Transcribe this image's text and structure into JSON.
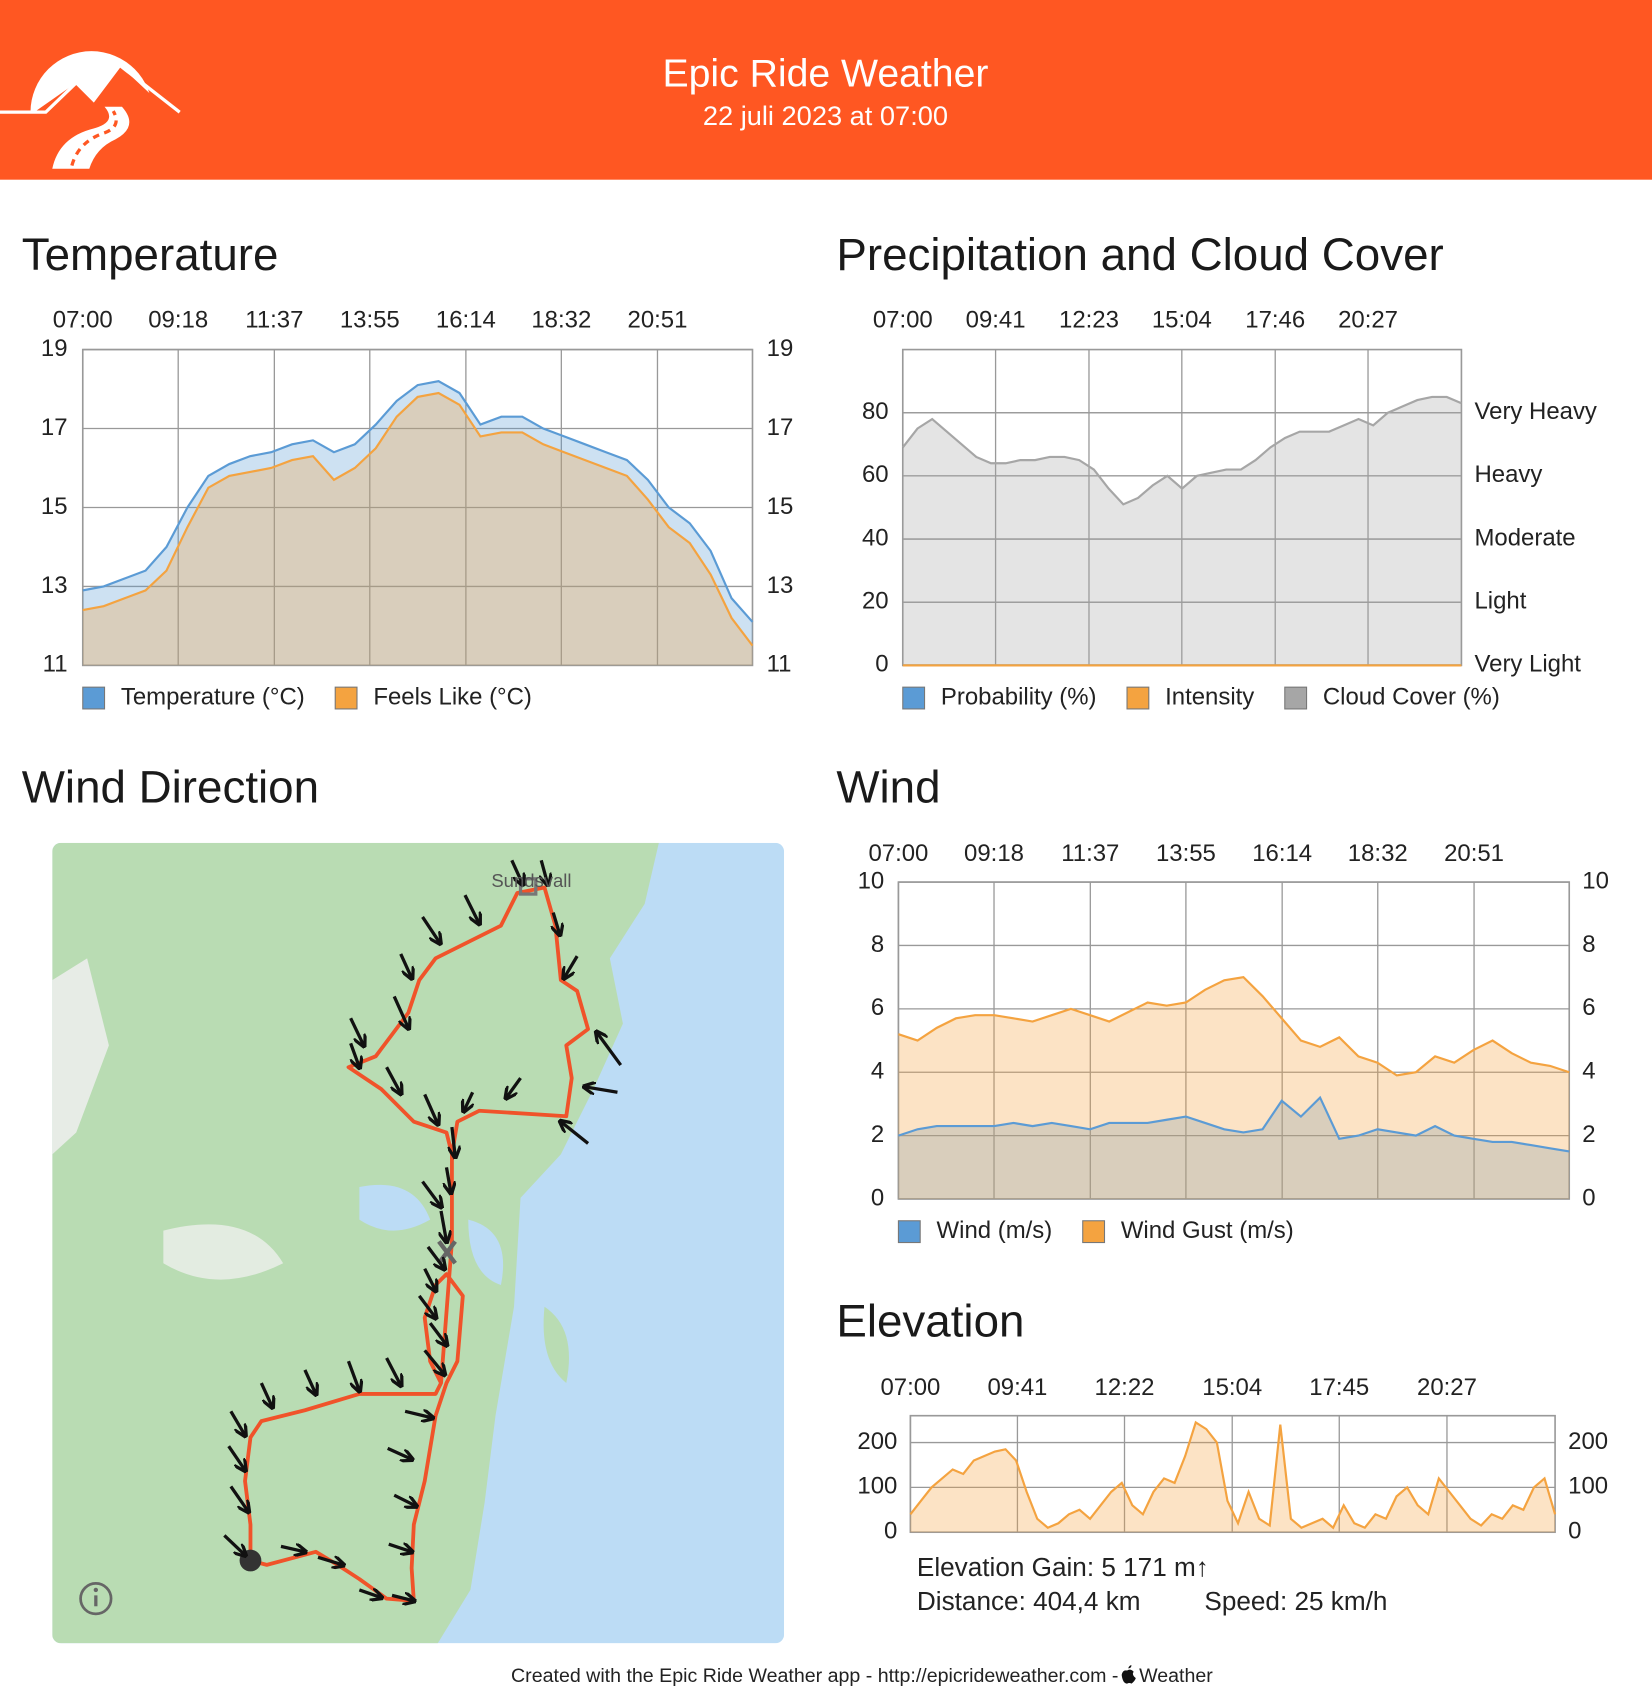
{
  "header": {
    "title": "Epic Ride Weather",
    "subtitle": "22 juli 2023 at 07:00"
  },
  "chart_data": [
    {
      "type": "area",
      "title": "Temperature",
      "xlim": [
        7,
        23.14
      ],
      "xticks": [
        {
          "value": 7,
          "label": "07:00"
        },
        {
          "value": 9.3,
          "label": "09:18"
        },
        {
          "value": 11.617,
          "label": "11:37"
        },
        {
          "value": 13.917,
          "label": "13:55"
        },
        {
          "value": 16.233,
          "label": "16:14"
        },
        {
          "value": 18.533,
          "label": "18:32"
        },
        {
          "value": 20.85,
          "label": "20:51"
        }
      ],
      "ylim": [
        11,
        19
      ],
      "yticks": [
        11,
        13,
        15,
        17,
        19
      ],
      "mirror_y_axis": true,
      "grid": true,
      "series": [
        {
          "name": "Temperature (°C)",
          "color": "#5b9bd5",
          "values": [
            12.9,
            13.0,
            13.2,
            13.4,
            14.0,
            15.0,
            15.8,
            16.1,
            16.3,
            16.4,
            16.6,
            16.7,
            16.4,
            16.6,
            17.1,
            17.7,
            18.1,
            18.2,
            17.9,
            17.1,
            17.3,
            17.3,
            17.0,
            16.8,
            16.6,
            16.4,
            16.2,
            15.7,
            15.0,
            14.6,
            13.9,
            12.7,
            12.1
          ]
        },
        {
          "name": "Feels Like (°C)",
          "color": "#f4a340",
          "values": [
            12.4,
            12.5,
            12.7,
            12.9,
            13.4,
            14.5,
            15.5,
            15.8,
            15.9,
            16.0,
            16.2,
            16.3,
            15.7,
            16.0,
            16.5,
            17.3,
            17.8,
            17.9,
            17.6,
            16.8,
            16.9,
            16.9,
            16.6,
            16.4,
            16.2,
            16.0,
            15.8,
            15.2,
            14.5,
            14.1,
            13.3,
            12.2,
            11.5
          ]
        }
      ]
    },
    {
      "type": "area",
      "title": "Precipitation and Cloud Cover",
      "xlim": [
        7,
        23.15
      ],
      "xticks": [
        {
          "value": 7,
          "label": "07:00"
        },
        {
          "value": 9.683,
          "label": "09:41"
        },
        {
          "value": 12.383,
          "label": "12:23"
        },
        {
          "value": 15.067,
          "label": "15:04"
        },
        {
          "value": 17.767,
          "label": "17:46"
        },
        {
          "value": 20.45,
          "label": "20:27"
        }
      ],
      "ylim": [
        0,
        100
      ],
      "yticks": [
        0,
        20,
        40,
        60,
        80
      ],
      "y2lim": [
        0,
        100
      ],
      "y2ticks": [
        {
          "value": 0,
          "label": "Very Light"
        },
        {
          "value": 20,
          "label": "Light"
        },
        {
          "value": 40,
          "label": "Moderate"
        },
        {
          "value": 60,
          "label": "Heavy"
        },
        {
          "value": 80,
          "label": "Very Heavy"
        }
      ],
      "grid": true,
      "series": [
        {
          "name": "Probability (%)",
          "color": "#5b9bd5",
          "values": [
            0,
            0,
            0,
            0,
            0
          ]
        },
        {
          "name": "Intensity",
          "color": "#f4a340",
          "axis": "y2",
          "values": [
            0,
            0,
            0,
            0,
            0
          ]
        },
        {
          "name": "Cloud Cover (%)",
          "color": "#a6a6a6",
          "values": [
            69,
            75,
            78,
            74,
            70,
            66,
            64,
            64,
            65,
            65,
            66,
            66,
            65,
            62,
            56,
            51,
            53,
            57,
            60,
            56,
            60,
            61,
            62,
            62,
            65,
            69,
            72,
            74,
            74,
            74,
            76,
            78,
            76,
            80,
            82,
            84,
            85,
            85,
            83
          ]
        }
      ]
    },
    {
      "type": "area",
      "title": "Wind",
      "xlim": [
        7,
        23.14
      ],
      "xticks": [
        {
          "value": 7,
          "label": "07:00"
        },
        {
          "value": 9.3,
          "label": "09:18"
        },
        {
          "value": 11.617,
          "label": "11:37"
        },
        {
          "value": 13.917,
          "label": "13:55"
        },
        {
          "value": 16.233,
          "label": "16:14"
        },
        {
          "value": 18.533,
          "label": "18:32"
        },
        {
          "value": 20.85,
          "label": "20:51"
        }
      ],
      "ylim": [
        0,
        10
      ],
      "yticks": [
        0,
        2,
        4,
        6,
        8,
        10
      ],
      "mirror_y_axis": true,
      "grid": true,
      "series": [
        {
          "name": "Wind (m/s)",
          "color": "#5b9bd5",
          "values": [
            2.0,
            2.2,
            2.3,
            2.3,
            2.3,
            2.3,
            2.4,
            2.3,
            2.4,
            2.3,
            2.2,
            2.4,
            2.4,
            2.4,
            2.5,
            2.6,
            2.4,
            2.2,
            2.1,
            2.2,
            3.1,
            2.6,
            3.2,
            1.9,
            2.0,
            2.2,
            2.1,
            2.0,
            2.3,
            2.0,
            1.9,
            1.8,
            1.8,
            1.7,
            1.6,
            1.5
          ]
        },
        {
          "name": "Wind Gust (m/s)",
          "color": "#f4a340",
          "values": [
            5.2,
            5.0,
            5.4,
            5.7,
            5.8,
            5.8,
            5.7,
            5.6,
            5.8,
            6.0,
            5.8,
            5.6,
            5.9,
            6.2,
            6.1,
            6.2,
            6.6,
            6.9,
            7.0,
            6.4,
            5.7,
            5.0,
            4.8,
            5.1,
            4.5,
            4.3,
            3.9,
            4.0,
            4.5,
            4.3,
            4.7,
            5.0,
            4.6,
            4.3,
            4.2,
            4.0
          ]
        }
      ]
    },
    {
      "type": "area",
      "title": "Elevation",
      "xlim": [
        7,
        23.16
      ],
      "xticks": [
        {
          "value": 7,
          "label": "07:00"
        },
        {
          "value": 9.683,
          "label": "09:41"
        },
        {
          "value": 12.367,
          "label": "12:22"
        },
        {
          "value": 15.067,
          "label": "15:04"
        },
        {
          "value": 17.75,
          "label": "17:45"
        },
        {
          "value": 20.45,
          "label": "20:27"
        }
      ],
      "ylim": [
        0,
        260
      ],
      "yticks": [
        0,
        100,
        200
      ],
      "mirror_y_axis": true,
      "grid": true,
      "color": "#f4a340",
      "values": [
        40,
        70,
        100,
        120,
        140,
        130,
        160,
        170,
        180,
        185,
        160,
        90,
        30,
        10,
        20,
        40,
        50,
        30,
        60,
        90,
        110,
        60,
        40,
        90,
        120,
        110,
        170,
        245,
        230,
        200,
        70,
        20,
        90,
        30,
        15,
        240,
        30,
        10,
        20,
        30,
        10,
        60,
        20,
        10,
        40,
        30,
        80,
        100,
        60,
        40,
        120,
        90,
        60,
        30,
        15,
        40,
        30,
        60,
        50,
        100,
        120,
        40
      ]
    }
  ],
  "map": {
    "title": "Wind Direction",
    "label": "Sundsvall"
  },
  "elevation_stats": {
    "gain": "Elevation Gain: 5 171 m↑",
    "distance": "Distance: 404,4 km",
    "speed": "Speed: 25 km/h"
  },
  "footer": {
    "text": "Created with the Epic Ride Weather app - http://epicrideweather.com -",
    "brand": "Weather"
  }
}
